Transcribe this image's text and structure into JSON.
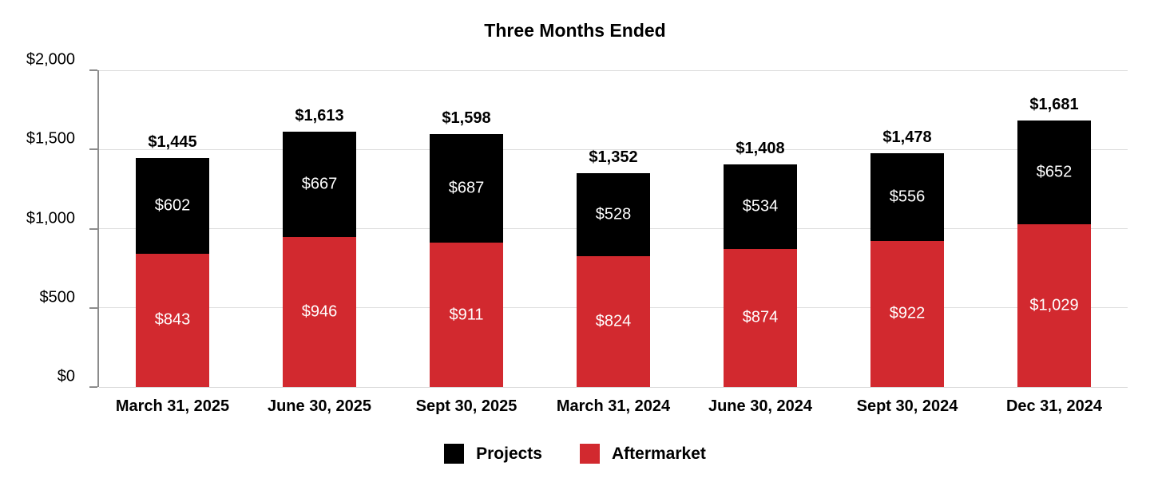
{
  "chart_data": {
    "type": "bar",
    "stacked": true,
    "title": "Three Months Ended",
    "categories": [
      "March 31, 2025",
      "June 30, 2025",
      "Sept 30, 2025",
      "March 31, 2024",
      "June 30, 2024",
      "Sept 30, 2024",
      "Dec 31, 2024"
    ],
    "series": [
      {
        "name": "Projects",
        "color": "#000000",
        "stack_position": "top",
        "values": [
          602,
          667,
          687,
          528,
          534,
          556,
          652
        ],
        "labels": [
          "$602",
          "$667",
          "$687",
          "$528",
          "$534",
          "$556",
          "$652"
        ]
      },
      {
        "name": "Aftermarket",
        "color": "#d2292f",
        "stack_position": "bottom",
        "values": [
          843,
          946,
          911,
          824,
          874,
          922,
          1029
        ],
        "labels": [
          "$843",
          "$946",
          "$911",
          "$824",
          "$874",
          "$922",
          "$1,029"
        ]
      }
    ],
    "totals": {
      "values": [
        1445,
        1613,
        1598,
        1352,
        1408,
        1478,
        1681
      ],
      "labels": [
        "$1,445",
        "$1,613",
        "$1,598",
        "$1,352",
        "$1,408",
        "$1,478",
        "$1,681"
      ]
    },
    "y_axis": {
      "min": 0,
      "max": 2000,
      "ticks": [
        {
          "value": 0,
          "label": "$0"
        },
        {
          "value": 500,
          "label": "$500"
        },
        {
          "value": 1000,
          "label": "$1,000"
        },
        {
          "value": 1500,
          "label": "$1,500"
        },
        {
          "value": 2000,
          "label": "$2,000"
        }
      ]
    },
    "grid": true,
    "legend": {
      "position": "bottom",
      "items": [
        {
          "label": "Projects",
          "color": "#000000"
        },
        {
          "label": "Aftermarket",
          "color": "#d2292f"
        }
      ]
    },
    "colors": {
      "grid_line": "#dddddd",
      "axis_line": "#8c8c8c",
      "segment_label_text": "#ffffff",
      "total_label_text": "#000000",
      "background": "#ffffff"
    }
  }
}
